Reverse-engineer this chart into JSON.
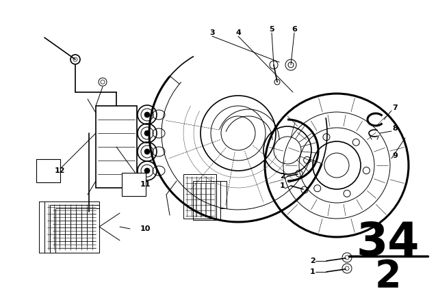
{
  "bg_color": "#ffffff",
  "fig_number": "34",
  "fig_sub": "2",
  "label_font_size": 8,
  "large_num_fontsize": 48,
  "sub_num_fontsize": 40,
  "divider_line": [
    510,
    375,
    625,
    375
  ]
}
